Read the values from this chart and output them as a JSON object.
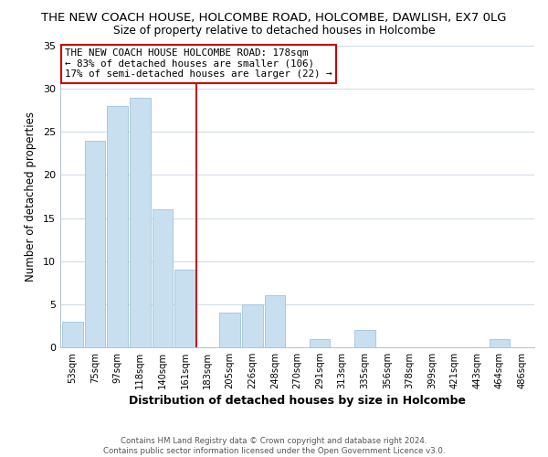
{
  "title": "THE NEW COACH HOUSE, HOLCOMBE ROAD, HOLCOMBE, DAWLISH, EX7 0LG",
  "subtitle": "Size of property relative to detached houses in Holcombe",
  "xlabel": "Distribution of detached houses by size in Holcombe",
  "ylabel": "Number of detached properties",
  "bar_color": "#c8dff0",
  "bar_edgecolor": "#9ec4dc",
  "categories": [
    "53sqm",
    "75sqm",
    "97sqm",
    "118sqm",
    "140sqm",
    "161sqm",
    "183sqm",
    "205sqm",
    "226sqm",
    "248sqm",
    "270sqm",
    "291sqm",
    "313sqm",
    "335sqm",
    "356sqm",
    "378sqm",
    "399sqm",
    "421sqm",
    "443sqm",
    "464sqm",
    "486sqm"
  ],
  "values": [
    3,
    24,
    28,
    29,
    16,
    9,
    0,
    4,
    5,
    6,
    0,
    1,
    0,
    2,
    0,
    0,
    0,
    0,
    0,
    1,
    0
  ],
  "ylim": [
    0,
    35
  ],
  "vline_x_index": 6,
  "vline_color": "#cc0000",
  "annotation_title": "THE NEW COACH HOUSE HOLCOMBE ROAD: 178sqm",
  "annotation_line1": "← 83% of detached houses are smaller (106)",
  "annotation_line2": "17% of semi-detached houses are larger (22) →",
  "footer1": "Contains HM Land Registry data © Crown copyright and database right 2024.",
  "footer2": "Contains public sector information licensed under the Open Government Licence v3.0.",
  "background_color": "#ffffff",
  "grid_color": "#d0dde8",
  "title_fontsize": 9.5,
  "subtitle_fontsize": 8.8,
  "yticks": [
    0,
    5,
    10,
    15,
    20,
    25,
    30,
    35
  ]
}
